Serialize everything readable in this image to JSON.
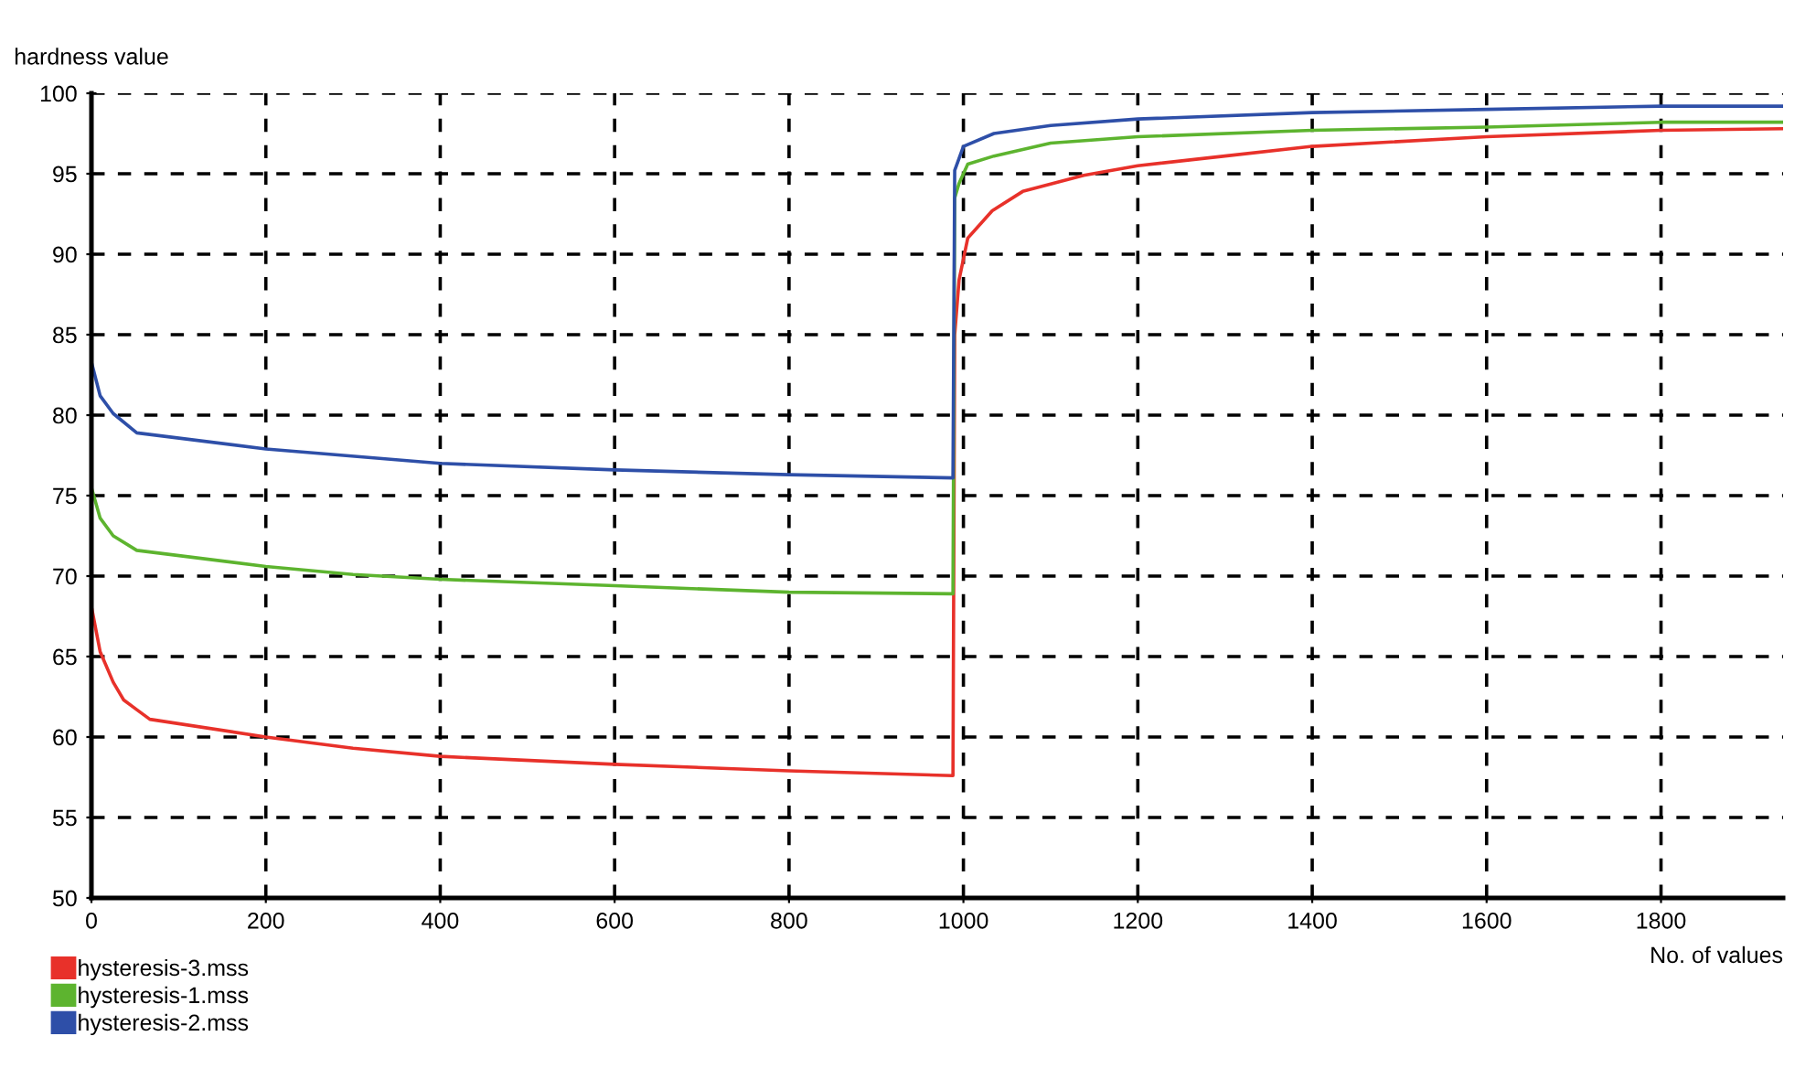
{
  "chart_data": {
    "type": "line",
    "xlabel": "No. of values",
    "ylabel": "hardness value",
    "xlim": [
      0,
      1940
    ],
    "ylim": [
      50,
      100
    ],
    "xticks": [
      0,
      200,
      400,
      600,
      800,
      1000,
      1200,
      1400,
      1600,
      1800
    ],
    "yticks": [
      50,
      55,
      60,
      65,
      70,
      75,
      80,
      85,
      90,
      95,
      100
    ],
    "grid": true,
    "legend": "bottom left",
    "marker": "none",
    "line_style": "solid",
    "series": [
      {
        "name": "hysteresis-3.mss",
        "color": "#e8312a",
        "x": [
          0,
          10,
          25,
          37,
          52,
          67,
          200,
          300,
          400,
          600,
          800,
          988,
          990,
          995,
          1005,
          1033,
          1068,
          1103,
          1138,
          1200,
          1300,
          1400,
          1600,
          1800,
          1940
        ],
        "values": [
          68.1,
          65.3,
          63.4,
          62.3,
          61.7,
          61.1,
          60.0,
          59.3,
          58.8,
          58.3,
          57.9,
          57.6,
          85.0,
          88.4,
          91.0,
          92.7,
          93.9,
          94.4,
          94.9,
          95.5,
          96.1,
          96.7,
          97.3,
          97.7,
          97.8
        ]
      },
      {
        "name": "hysteresis-1.mss",
        "color": "#5db42f",
        "x": [
          0,
          10,
          25,
          52,
          200,
          300,
          400,
          600,
          800,
          988,
          990,
          995,
          1005,
          1035,
          1100,
          1200,
          1400,
          1600,
          1800,
          1940
        ],
        "values": [
          75.5,
          73.6,
          72.5,
          71.6,
          70.6,
          70.1,
          69.8,
          69.4,
          69.0,
          68.9,
          93.5,
          94.4,
          95.6,
          96.1,
          96.9,
          97.3,
          97.7,
          97.9,
          98.2,
          98.2
        ]
      },
      {
        "name": "hysteresis-2.mss",
        "color": "#2e4fa8",
        "x": [
          0,
          10,
          25,
          52,
          200,
          400,
          600,
          800,
          988,
          990,
          1000,
          1035,
          1100,
          1200,
          1400,
          1600,
          1800,
          1940
        ],
        "values": [
          83.3,
          81.2,
          80.1,
          78.9,
          77.9,
          77.0,
          76.6,
          76.3,
          76.1,
          95.2,
          96.7,
          97.5,
          98.0,
          98.4,
          98.8,
          99.0,
          99.2,
          99.2
        ]
      }
    ]
  }
}
